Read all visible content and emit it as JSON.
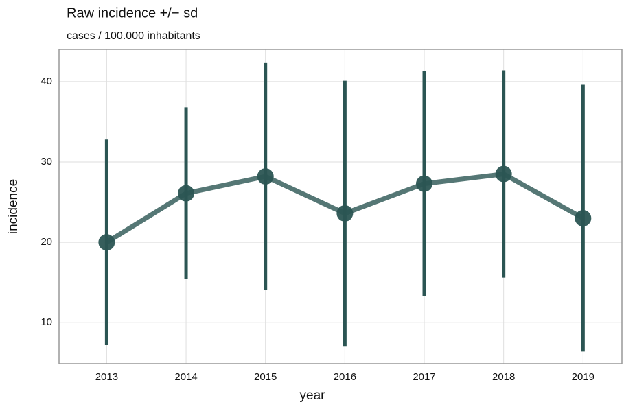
{
  "chart_data": {
    "type": "line",
    "title": "Raw incidence +/− sd",
    "subtitle": "cases / 100.000 inhabitants",
    "x_label": "year",
    "y_label": "incidence",
    "x": [
      2013,
      2014,
      2015,
      2016,
      2017,
      2018,
      2019
    ],
    "series": [
      {
        "name": "incidence",
        "color": "#2b5553",
        "values": [
          20.0,
          26.1,
          28.2,
          23.6,
          27.3,
          28.5,
          23.0
        ],
        "errors": [
          12.8,
          10.7,
          14.1,
          16.5,
          14.0,
          12.9,
          16.6
        ]
      }
    ],
    "xlim": [
      2012.4,
      2019.49
    ],
    "xticks": [
      2013,
      2014,
      2015,
      2016,
      2017,
      2018,
      2019
    ],
    "ylim": [
      4.9,
      44.0
    ],
    "yticks": [
      10,
      20,
      30,
      40
    ],
    "grid": true
  }
}
